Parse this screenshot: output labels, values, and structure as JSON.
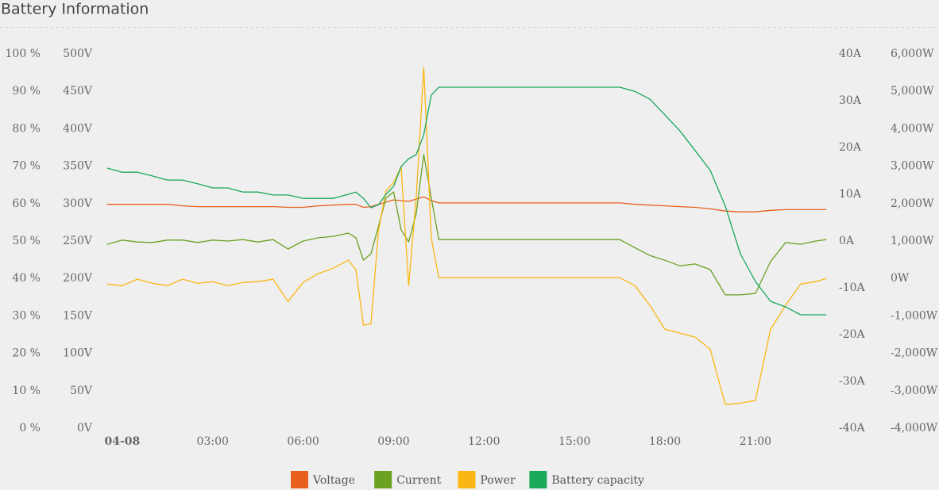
{
  "chart_data": {
    "type": "line",
    "title": "Battery Information",
    "x": [
      -0.5,
      0,
      0.5,
      1,
      1.5,
      2,
      2.5,
      3,
      3.5,
      4,
      4.5,
      5,
      5.5,
      6,
      6.5,
      7,
      7.5,
      7.75,
      8,
      8.25,
      8.5,
      8.75,
      9,
      9.25,
      9.5,
      9.75,
      10,
      10.25,
      10.5,
      11,
      11.5,
      12,
      12.5,
      13,
      13.5,
      14,
      14.5,
      15,
      15.5,
      16,
      16.5,
      17,
      17.5,
      18,
      18.5,
      19,
      19.5,
      20,
      20.5,
      21,
      21.5,
      22,
      22.5,
      23,
      23.35
    ],
    "xlim": [
      -0.55,
      23.4
    ],
    "xticks": [
      {
        "value": 0,
        "label": "04-08"
      },
      {
        "value": 3,
        "label": "03:00"
      },
      {
        "value": 6,
        "label": "06:00"
      },
      {
        "value": 9,
        "label": "09:00"
      },
      {
        "value": 12,
        "label": "12:00"
      },
      {
        "value": 15,
        "label": "15:00"
      },
      {
        "value": 18,
        "label": "18:00"
      },
      {
        "value": 21,
        "label": "21:00"
      }
    ],
    "axes": [
      {
        "position": "left",
        "lim": [
          0,
          100
        ],
        "ticks": [
          {
            "value": 0,
            "label": "0 %"
          },
          {
            "value": 10,
            "label": "10 %"
          },
          {
            "value": 20,
            "label": "20 %"
          },
          {
            "value": 30,
            "label": "30 %"
          },
          {
            "value": 40,
            "label": "40 %"
          },
          {
            "value": 50,
            "label": "50 %"
          },
          {
            "value": 60,
            "label": "60 %"
          },
          {
            "value": 70,
            "label": "70 %"
          },
          {
            "value": 80,
            "label": "80 %"
          },
          {
            "value": 90,
            "label": "90 %"
          },
          {
            "value": 100,
            "label": "100 %"
          }
        ]
      },
      {
        "position": "left",
        "lim": [
          0,
          500
        ],
        "ticks": [
          {
            "value": 0,
            "label": "0V"
          },
          {
            "value": 50,
            "label": "50V"
          },
          {
            "value": 100,
            "label": "100V"
          },
          {
            "value": 150,
            "label": "150V"
          },
          {
            "value": 200,
            "label": "200V"
          },
          {
            "value": 250,
            "label": "250V"
          },
          {
            "value": 300,
            "label": "300V"
          },
          {
            "value": 350,
            "label": "350V"
          },
          {
            "value": 400,
            "label": "400V"
          },
          {
            "value": 450,
            "label": "450V"
          },
          {
            "value": 500,
            "label": "500V"
          }
        ]
      },
      {
        "position": "right",
        "lim": [
          -40,
          40
        ],
        "ticks": [
          {
            "value": -40,
            "label": "-40A"
          },
          {
            "value": -30,
            "label": "-30A"
          },
          {
            "value": -20,
            "label": "-20A"
          },
          {
            "value": -10,
            "label": "-10A"
          },
          {
            "value": 0,
            "label": "0A"
          },
          {
            "value": 10,
            "label": "10A"
          },
          {
            "value": 20,
            "label": "20A"
          },
          {
            "value": 30,
            "label": "30A"
          },
          {
            "value": 40,
            "label": "40A"
          }
        ]
      },
      {
        "position": "right",
        "lim": [
          -4000,
          6000
        ],
        "ticks": [
          {
            "value": -4000,
            "label": "-4,000W"
          },
          {
            "value": -3000,
            "label": "-3,000W"
          },
          {
            "value": -2000,
            "label": "-2,000W"
          },
          {
            "value": -1000,
            "label": "-1,000W"
          },
          {
            "value": 0,
            "label": "0W"
          },
          {
            "value": 1000,
            "label": "1,000W"
          },
          {
            "value": 2000,
            "label": "2,000W"
          },
          {
            "value": 3000,
            "label": "3,000W"
          },
          {
            "value": 4000,
            "label": "4,000W"
          },
          {
            "value": 5000,
            "label": "5,000W"
          },
          {
            "value": 6000,
            "label": "6,000W"
          }
        ]
      }
    ],
    "series": [
      {
        "name": "Voltage",
        "color": "#e8601c",
        "axis": 1,
        "values": [
          299,
          299,
          299,
          299,
          299,
          297,
          296,
          296,
          296,
          296,
          296,
          296,
          295,
          295,
          297,
          298,
          299,
          299,
          295,
          296,
          299,
          302,
          305,
          304,
          303,
          306,
          309,
          304,
          301,
          301,
          301,
          301,
          301,
          301,
          301,
          301,
          301,
          301,
          301,
          301,
          301,
          299,
          298,
          297,
          296,
          295,
          293,
          290,
          289,
          289,
          291,
          292,
          292,
          292,
          292
        ]
      },
      {
        "name": "Current",
        "color": "#6aa121",
        "axis": 2,
        "values": [
          -0.7,
          0.2,
          -0.2,
          -0.3,
          0.2,
          0.2,
          -0.3,
          0.2,
          0,
          0.3,
          -0.2,
          0.3,
          -1.7,
          0,
          0.7,
          1.0,
          1.7,
          0.7,
          -4.1,
          -2.7,
          3.2,
          9.2,
          10.5,
          2.4,
          -0.2,
          5.8,
          18.5,
          9.2,
          0.3,
          0.3,
          0.3,
          0.3,
          0.3,
          0.3,
          0.3,
          0.3,
          0.3,
          0.3,
          0.3,
          0.3,
          0.3,
          -1.4,
          -3.1,
          -4.1,
          -5.3,
          -4.9,
          -6.1,
          -11.5,
          -11.5,
          -11.2,
          -4.4,
          -0.3,
          -0.7,
          0,
          0.3
        ]
      },
      {
        "name": "Power",
        "color": "#fbb613",
        "axis": 3,
        "values": [
          -150,
          -190,
          -20,
          -130,
          -190,
          -20,
          -130,
          -85,
          -190,
          -105,
          -85,
          -20,
          -615,
          -105,
          130,
          275,
          490,
          235,
          -1250,
          -1210,
          1290,
          2350,
          2560,
          2990,
          -190,
          2140,
          5640,
          1080,
          20,
          20,
          20,
          20,
          20,
          20,
          20,
          20,
          20,
          20,
          20,
          20,
          20,
          -190,
          -720,
          -1360,
          -1460,
          -1570,
          -1890,
          -3370,
          -3330,
          -3260,
          -1360,
          -720,
          -150,
          -85,
          0
        ]
      },
      {
        "name": "Battery capacity",
        "color": "#1aa85b",
        "axis": 0,
        "values": [
          69.5,
          68.4,
          68.4,
          67.4,
          66.3,
          66.3,
          65.3,
          64.2,
          64.2,
          63.1,
          63.1,
          62.3,
          62.3,
          61.4,
          61.4,
          61.4,
          62.5,
          63.1,
          61.4,
          58.9,
          59.7,
          62.5,
          64.6,
          69.9,
          72,
          73.1,
          78.4,
          89,
          91.1,
          91.1,
          91.1,
          91.1,
          91.1,
          91.1,
          91.1,
          91.1,
          91.1,
          91.1,
          91.1,
          91.1,
          91.1,
          90,
          87.9,
          83.7,
          79.4,
          74.2,
          68.9,
          59.3,
          46.6,
          39.2,
          33.9,
          32.4,
          30.3,
          30.3,
          30.3
        ]
      }
    ]
  }
}
